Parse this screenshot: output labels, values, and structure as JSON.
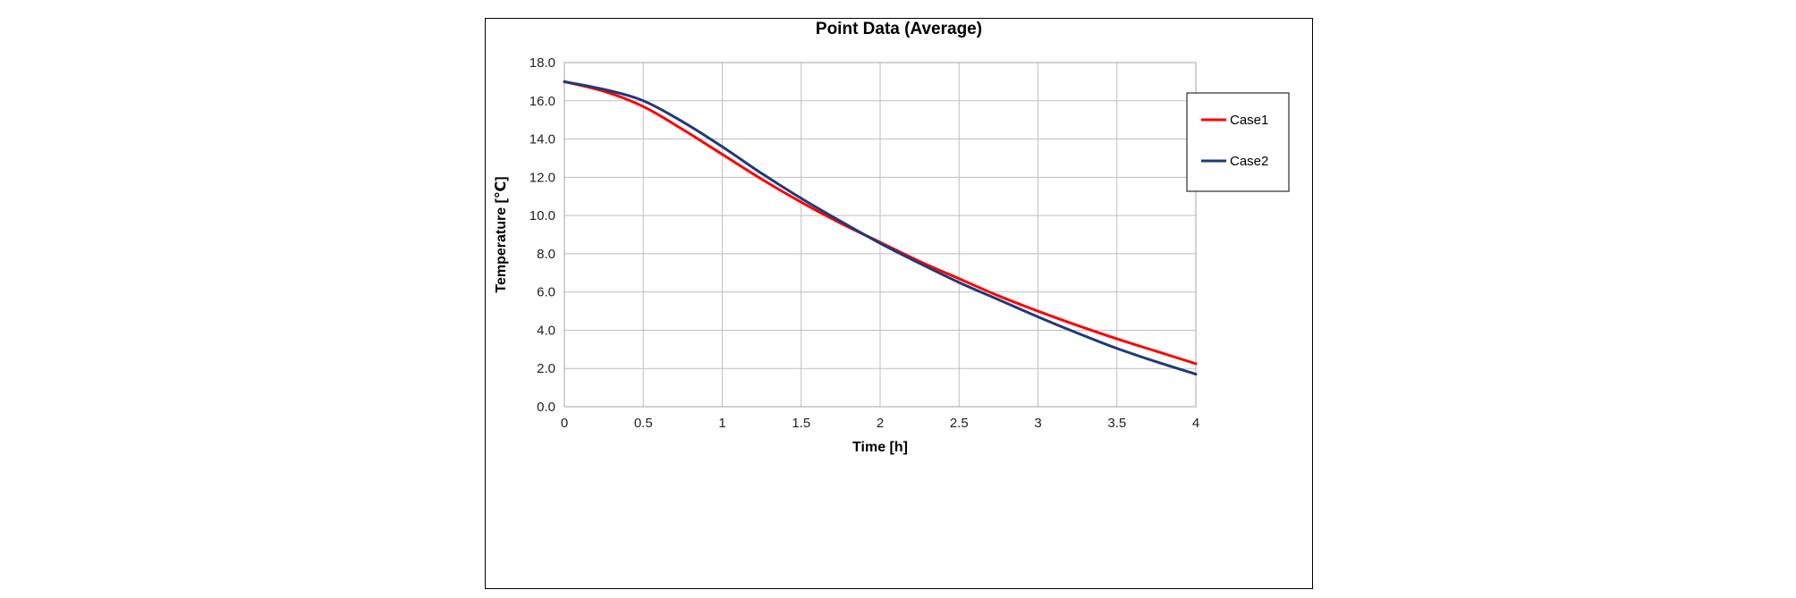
{
  "chart_data": {
    "type": "line",
    "title": "Point Data (Average)",
    "xlabel": "Time [h]",
    "ylabel": "Temperature [℃]",
    "xlim": [
      0,
      4
    ],
    "ylim": [
      0,
      18
    ],
    "x_ticks": [
      "0",
      "0.5",
      "1",
      "1.5",
      "2",
      "2.5",
      "3",
      "3.5",
      "4"
    ],
    "x_tick_values": [
      0,
      0.5,
      1,
      1.5,
      2,
      2.5,
      3,
      3.5,
      4
    ],
    "y_ticks": [
      "0.0",
      "2.0",
      "4.0",
      "6.0",
      "8.0",
      "10.0",
      "12.0",
      "14.0",
      "16.0",
      "18.0"
    ],
    "y_tick_values": [
      0,
      2,
      4,
      6,
      8,
      10,
      12,
      14,
      16,
      18
    ],
    "grid": true,
    "legend_position": "top-right",
    "series": [
      {
        "name": "Case1",
        "color": "#ff0000",
        "x": [
          0,
          0.25,
          0.5,
          0.75,
          1.0,
          1.25,
          1.5,
          1.75,
          2.0,
          2.25,
          2.5,
          2.75,
          3.0,
          3.25,
          3.5,
          3.75,
          4.0
        ],
        "y": [
          17.0,
          16.5,
          15.7,
          14.5,
          13.2,
          11.9,
          10.7,
          9.6,
          8.6,
          7.6,
          6.7,
          5.8,
          5.0,
          4.25,
          3.55,
          2.9,
          2.25
        ]
      },
      {
        "name": "Case2",
        "color": "#1f3a7a",
        "x": [
          0,
          0.25,
          0.5,
          0.75,
          1.0,
          1.25,
          1.5,
          1.75,
          2.0,
          2.25,
          2.5,
          2.75,
          3.0,
          3.25,
          3.5,
          3.75,
          4.0
        ],
        "y": [
          17.0,
          16.6,
          16.0,
          14.9,
          13.6,
          12.2,
          10.9,
          9.7,
          8.55,
          7.5,
          6.5,
          5.6,
          4.7,
          3.85,
          3.05,
          2.35,
          1.7
        ]
      }
    ]
  }
}
